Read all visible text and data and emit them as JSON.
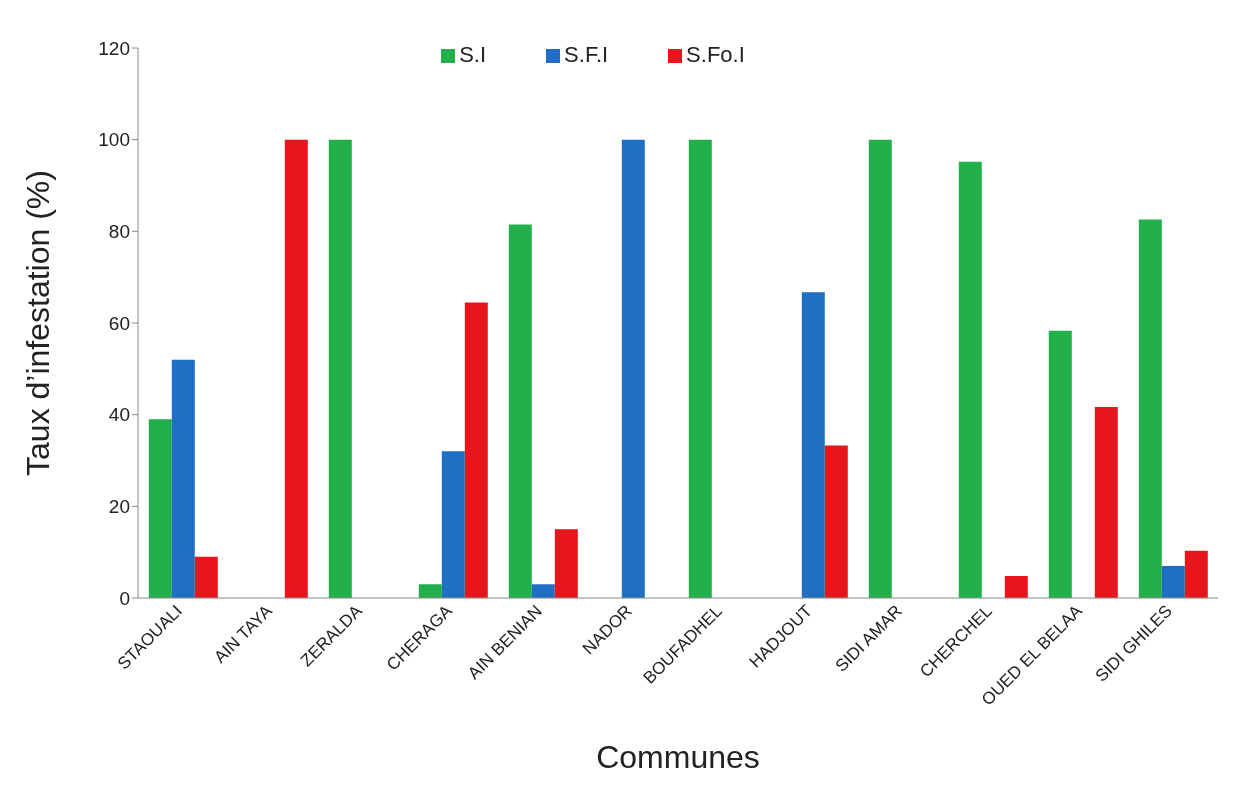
{
  "chart_data": {
    "type": "bar",
    "xlabel": "Communes",
    "ylabel": "Taux d’infestation (%)",
    "categories": [
      "STAOUALI",
      "AIN TAYA",
      "ZERALDA",
      "CHERAGA",
      "AIN BENIAN",
      "NADOR",
      "BOUFADHEL",
      "HADJOUT",
      "SIDI AMAR",
      "CHERCHEL",
      "OUED EL BELAA",
      "SIDI GHILES"
    ],
    "series": [
      {
        "name": "S.I",
        "color": "#22b04b",
        "values": [
          39,
          0,
          100,
          3,
          81.5,
          0,
          100,
          0,
          100,
          95.2,
          58.3,
          82.6
        ]
      },
      {
        "name": "S.F.I",
        "color": "#1f6fc4",
        "values": [
          52,
          0,
          0,
          32,
          3,
          100,
          0,
          66.7,
          0,
          0,
          0,
          7
        ]
      },
      {
        "name": "S.Fo.I",
        "color": "#e8161c",
        "values": [
          9,
          100,
          0,
          64.5,
          15,
          0,
          0,
          33.3,
          0,
          4.8,
          41.7,
          10.3
        ]
      }
    ],
    "ylim": [
      0,
      120
    ],
    "yticks": [
      0,
      20,
      40,
      60,
      80,
      100,
      120
    ],
    "grid": false,
    "legend": "top"
  }
}
